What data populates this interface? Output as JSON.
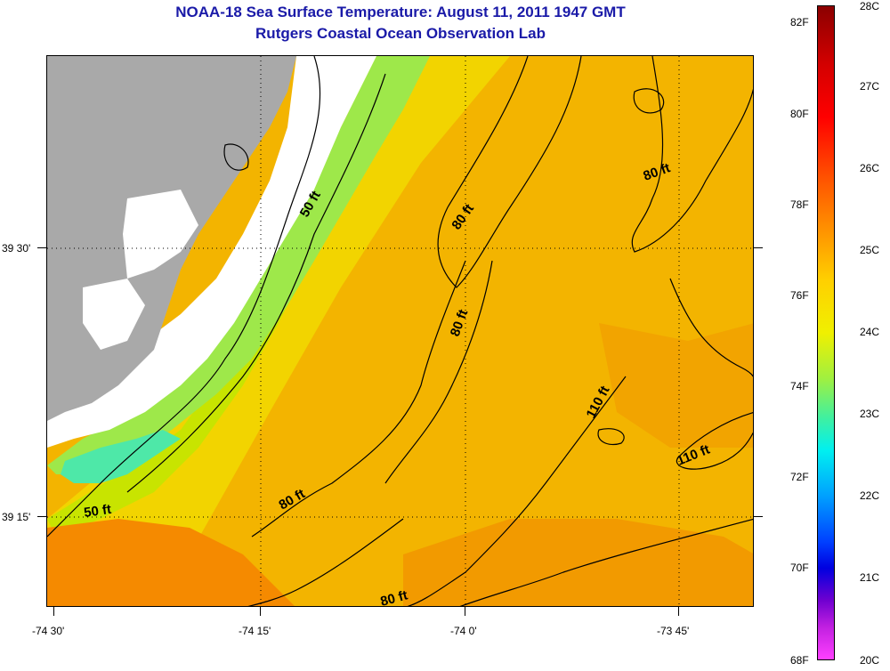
{
  "title": {
    "line1": "NOAA-18 Sea Surface Temperature:  August 11, 2011 1947 GMT",
    "line2": "Rutgers Coastal Ocean Observation Lab"
  },
  "colors": {
    "title": "#1a1aa8",
    "land": "#a9a9a9",
    "nodata": "#ffffff",
    "contour": "#000000"
  },
  "axes": {
    "y_labels": [
      "39 30'",
      "39 15'"
    ],
    "x_labels": [
      "-74 30'",
      "-74 15'",
      "-74 0'",
      "-73 45'"
    ]
  },
  "colorbar": {
    "fahrenheit": [
      "82F",
      "80F",
      "78F",
      "76F",
      "74F",
      "72F",
      "70F",
      "68F"
    ],
    "celsius": [
      "28C",
      "27C",
      "26C",
      "25C",
      "24C",
      "23C",
      "22C",
      "21C",
      "20C"
    ]
  },
  "contour_labels": [
    "50 ft",
    "80 ft",
    "80 ft",
    "80 ft",
    "110 ft",
    "110 ft",
    "50 ft",
    "80 ft",
    "80 ft"
  ]
}
